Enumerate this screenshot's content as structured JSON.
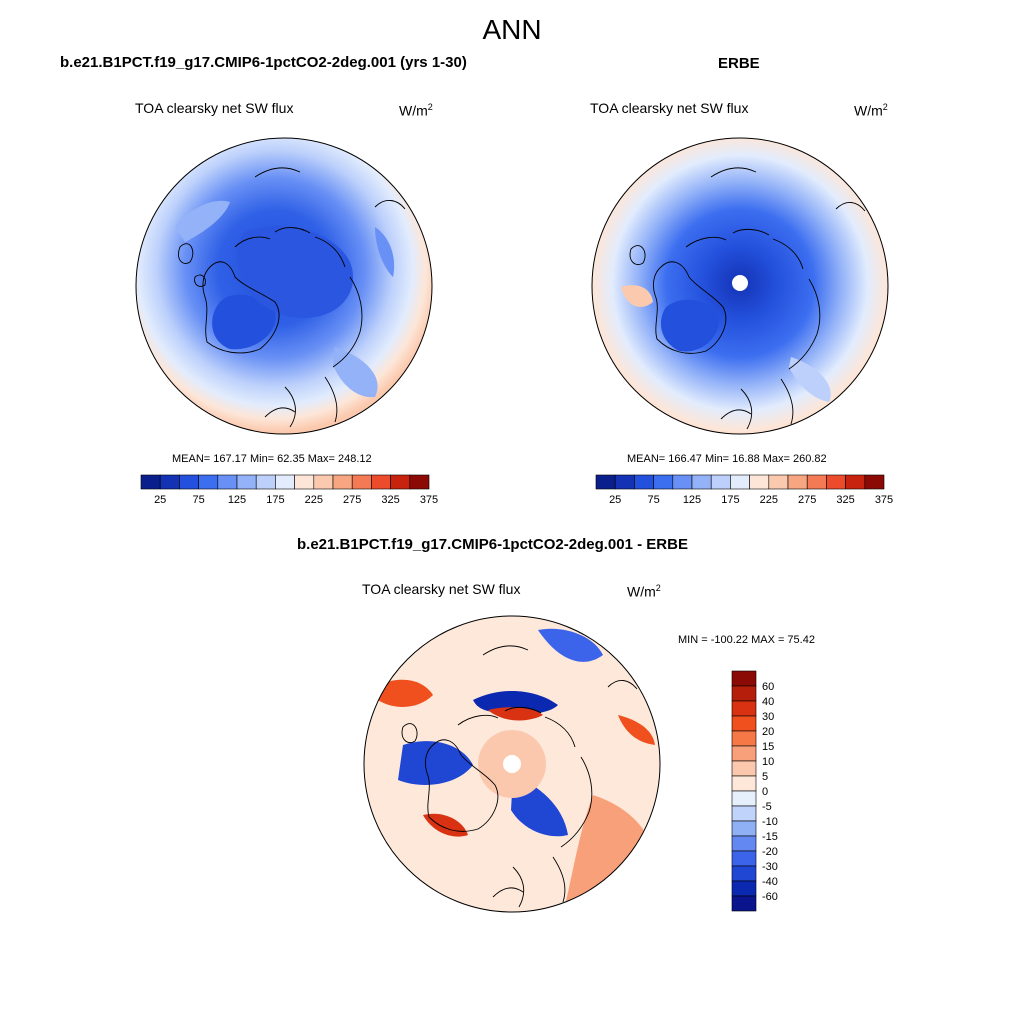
{
  "page": {
    "title": "ANN"
  },
  "panels": [
    {
      "title": "b.e21.B1PCT.f19_g17.CMIP6-1pctCO2-2deg.001 (yrs 1-30)",
      "variable": "TOA clearsky net SW flux",
      "units_base": "W/m",
      "units_exp": "2",
      "stats": "MEAN= 167.17  Min=  62.35  Max= 248.12"
    },
    {
      "title": "ERBE",
      "variable": "TOA clearsky net SW flux",
      "units_base": "W/m",
      "units_exp": "2",
      "stats": "MEAN= 166.47  Min=  16.88  Max= 260.82"
    },
    {
      "title": "b.e21.B1PCT.f19_g17.CMIP6-1pctCO2-2deg.001 - ERBE",
      "variable": "TOA clearsky net SW flux",
      "units_base": "W/m",
      "units_exp": "2",
      "stats": "MIN = -100.22 MAX =  75.42"
    }
  ],
  "chart_data": [
    {
      "type": "heatmap",
      "title": "b.e21.B1PCT.f19_g17.CMIP6-1pctCO2-2deg.001 (yrs 1-30)",
      "projection": "north-polar-stereographic",
      "colorbar": {
        "orientation": "horizontal",
        "tick_labels": [
          "25",
          "75",
          "125",
          "175",
          "225",
          "275",
          "325",
          "375"
        ],
        "colors": [
          "#0a1e8c",
          "#1432b4",
          "#2350dc",
          "#3c6ef0",
          "#6890f5",
          "#93b2f8",
          "#bcd0fb",
          "#e2ecfd",
          "#fde6d8",
          "#fbc9ae",
          "#f8a582",
          "#f47a55",
          "#ec4c2c",
          "#c8230f",
          "#8c0a05"
        ]
      },
      "mean": 167.17,
      "min": 62.35,
      "max": 248.12
    },
    {
      "type": "heatmap",
      "title": "ERBE",
      "projection": "north-polar-stereographic",
      "colorbar": {
        "orientation": "horizontal",
        "tick_labels": [
          "25",
          "75",
          "125",
          "175",
          "225",
          "275",
          "325",
          "375"
        ],
        "colors": [
          "#0a1e8c",
          "#1432b4",
          "#2350dc",
          "#3c6ef0",
          "#6890f5",
          "#93b2f8",
          "#bcd0fb",
          "#e2ecfd",
          "#fde6d8",
          "#fbc9ae",
          "#f8a582",
          "#f47a55",
          "#ec4c2c",
          "#c8230f",
          "#8c0a05"
        ]
      },
      "mean": 166.47,
      "min": 16.88,
      "max": 260.82
    },
    {
      "type": "heatmap",
      "title": "b.e21.B1PCT.f19_g17.CMIP6-1pctCO2-2deg.001 - ERBE",
      "projection": "north-polar-stereographic",
      "colorbar": {
        "orientation": "vertical",
        "tick_labels": [
          "60",
          "40",
          "30",
          "20",
          "15",
          "10",
          "5",
          "0",
          "-5",
          "-10",
          "-15",
          "-20",
          "-30",
          "-40",
          "-60"
        ],
        "colors": [
          "#8c0a05",
          "#b41e0a",
          "#d83212",
          "#f0501e",
          "#f57846",
          "#f8a07a",
          "#fbc8ae",
          "#fde8da",
          "#e6f0fd",
          "#c0d4fb",
          "#90b0f6",
          "#6488f2",
          "#3c64ea",
          "#2046d4",
          "#0a28b0",
          "#0a148c"
        ]
      },
      "min": -100.22,
      "max": 75.42
    }
  ]
}
